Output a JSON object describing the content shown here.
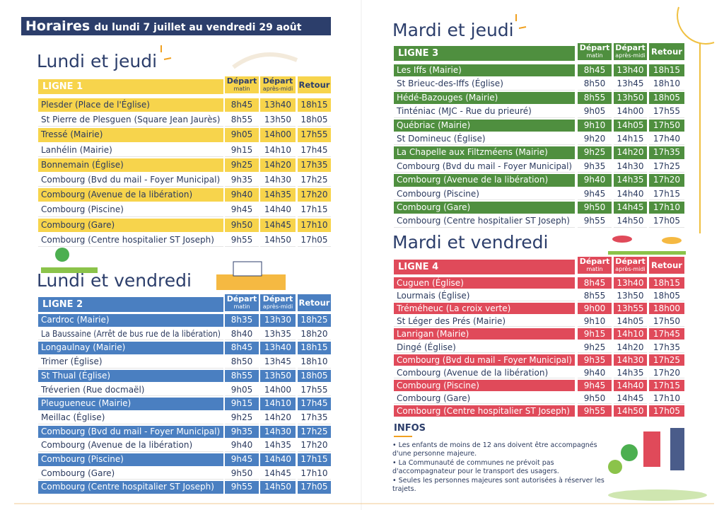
{
  "header": {
    "title": "Horaires",
    "subtitle": "du lundi 7 juillet au vendredi 29 août"
  },
  "columns": [
    {
      "line1": "Départ",
      "line2": "matin"
    },
    {
      "line1": "Départ",
      "line2": "après-midi"
    },
    {
      "line1": "Retour"
    }
  ],
  "sections": [
    {
      "title": "Lundi et jeudi",
      "line": "LIGNE 1",
      "rows": [
        [
          "Plesder (Place de l'Église)",
          "8h45",
          "13h40",
          "18h15"
        ],
        [
          "St Pierre de Plesguen (Square Jean Jaurès)",
          "8h55",
          "13h50",
          "18h05"
        ],
        [
          "Tressé (Mairie)",
          "9h05",
          "14h00",
          "17h55"
        ],
        [
          "Lanhélin (Mairie)",
          "9h15",
          "14h10",
          "17h45"
        ],
        [
          "Bonnemain (Église)",
          "9h25",
          "14h20",
          "17h35"
        ],
        [
          "Combourg (Bvd du mail - Foyer Municipal)",
          "9h35",
          "14h30",
          "17h25"
        ],
        [
          "Combourg (Avenue de la libération)",
          "9h40",
          "14h35",
          "17h20"
        ],
        [
          "Combourg (Piscine)",
          "9h45",
          "14h40",
          "17h15"
        ],
        [
          "Combourg (Gare)",
          "9h50",
          "14h45",
          "17h10"
        ],
        [
          "Combourg (Centre hospitalier ST Joseph)",
          "9h55",
          "14h50",
          "17h05"
        ]
      ]
    },
    {
      "title": "Lundi et vendredi",
      "line": "LIGNE 2",
      "rows": [
        [
          "Cardroc (Mairie)",
          "8h35",
          "13h30",
          "18h25"
        ],
        [
          "La Baussaine (Arrêt de bus rue de la libération)",
          "8h40",
          "13h35",
          "18h20"
        ],
        [
          "Longaulnay (Mairie)",
          "8h45",
          "13h40",
          "18h15"
        ],
        [
          "Trimer (Église)",
          "8h50",
          "13h45",
          "18h10"
        ],
        [
          "St Thual (Église)",
          "8h55",
          "13h50",
          "18h05"
        ],
        [
          "Tréverien (Rue docmaël)",
          "9h05",
          "14h00",
          "17h55"
        ],
        [
          "Pleugueneuc (Mairie)",
          "9h15",
          "14h10",
          "17h45"
        ],
        [
          "Meillac (Église)",
          "9h25",
          "14h20",
          "17h35"
        ],
        [
          "Combourg (Bvd du mail - Foyer Municipal)",
          "9h35",
          "14h30",
          "17h25"
        ],
        [
          "Combourg (Avenue de la libération)",
          "9h40",
          "14h35",
          "17h20"
        ],
        [
          "Combourg (Piscine)",
          "9h45",
          "14h40",
          "17h15"
        ],
        [
          "Combourg (Gare)",
          "9h50",
          "14h45",
          "17h10"
        ],
        [
          "Combourg (Centre hospitalier ST Joseph)",
          "9h55",
          "14h50",
          "17h05"
        ]
      ]
    },
    {
      "title": "Mardi et jeudi",
      "line": "LIGNE 3",
      "rows": [
        [
          "Les Iffs (Mairie)",
          "8h45",
          "13h40",
          "18h15"
        ],
        [
          "St Brieuc-des-Iffs (Église)",
          "8h50",
          "13h45",
          "18h10"
        ],
        [
          "Hédé-Bazouges (Mairie)",
          "8h55",
          "13h50",
          "18h05"
        ],
        [
          "Tinténiac (MJC - Rue du prieuré)",
          "9h05",
          "14h00",
          "17h55"
        ],
        [
          "Québriac (Mairie)",
          "9h10",
          "14h05",
          "17h50"
        ],
        [
          "St Domineuc (Église)",
          "9h20",
          "14h15",
          "17h40"
        ],
        [
          "La Chapelle aux Filtzméens (Mairie)",
          "9h25",
          "14h20",
          "17h35"
        ],
        [
          "Combourg (Bvd du mail - Foyer Municipal)",
          "9h35",
          "14h30",
          "17h25"
        ],
        [
          "Combourg (Avenue de la libération)",
          "9h40",
          "14h35",
          "17h20"
        ],
        [
          "Combourg (Piscine)",
          "9h45",
          "14h40",
          "17h15"
        ],
        [
          "Combourg (Gare)",
          "9h50",
          "14h45",
          "17h10"
        ],
        [
          "Combourg (Centre hospitalier ST Joseph)",
          "9h55",
          "14h50",
          "17h05"
        ]
      ]
    },
    {
      "title": "Mardi et vendredi",
      "line": "LIGNE 4",
      "rows": [
        [
          "Cuguen (Église)",
          "8h45",
          "13h40",
          "18h15"
        ],
        [
          "Lourmais (Église)",
          "8h55",
          "13h50",
          "18h05"
        ],
        [
          "Tréméheuc (La croix verte)",
          "9h00",
          "13h55",
          "18h00"
        ],
        [
          "St Léger des Prés (Mairie)",
          "9h10",
          "14h05",
          "17h50"
        ],
        [
          "Lanrigan (Mairie)",
          "9h15",
          "14h10",
          "17h45"
        ],
        [
          "Dingé (Église)",
          "9h25",
          "14h20",
          "17h35"
        ],
        [
          "Combourg (Bvd du mail - Foyer Municipal)",
          "9h35",
          "14h30",
          "17h25"
        ],
        [
          "Combourg (Avenue de la libération)",
          "9h40",
          "14h35",
          "17h20"
        ],
        [
          "Combourg (Piscine)",
          "9h45",
          "14h40",
          "17h15"
        ],
        [
          "Combourg (Gare)",
          "9h50",
          "14h45",
          "17h10"
        ],
        [
          "Combourg (Centre hospitalier ST Joseph)",
          "9h55",
          "14h50",
          "17h05"
        ]
      ]
    }
  ],
  "infos": {
    "title": "INFOS",
    "items": [
      "Les enfants de moins de 12 ans doivent être accompagnés d'une personne majeure.",
      "La Communauté de communes ne prévoit pas d'accompagnateur pour le transport des usagers.",
      "Seules les personnes majeures sont autorisées à réserver les trajets."
    ]
  }
}
